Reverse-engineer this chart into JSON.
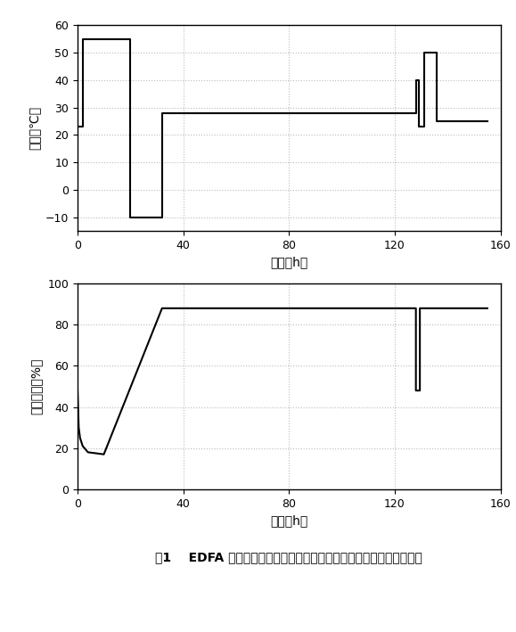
{
  "temp_x": [
    0,
    2,
    2,
    20,
    20,
    32,
    32,
    128,
    128,
    129,
    129,
    131,
    131,
    136,
    136,
    155
  ],
  "temp_y": [
    23,
    23,
    55,
    55,
    -10,
    -10,
    28,
    28,
    40,
    40,
    23,
    23,
    50,
    50,
    25,
    25
  ],
  "humid_x": [
    0,
    0.5,
    1,
    2,
    4,
    10,
    32,
    128,
    128,
    129.5,
    129.5,
    155
  ],
  "humid_y": [
    50,
    30,
    25,
    21,
    18,
    17,
    88,
    88,
    48,
    48,
    88,
    88
  ],
  "temp_xlim": [
    0,
    160
  ],
  "temp_ylim": [
    -15,
    60
  ],
  "humid_xlim": [
    0,
    160
  ],
  "humid_ylim": [
    0,
    100
  ],
  "temp_yticks": [
    -10,
    0,
    10,
    20,
    30,
    40,
    50,
    60
  ],
  "humid_yticks": [
    0,
    20,
    40,
    60,
    80,
    100
  ],
  "xticks": [
    0,
    40,
    80,
    120,
    160
  ],
  "temp_ylabel": "温度（℃）",
  "humid_ylabel": "相对湿度（%）",
  "xlabel": "时间（h）",
  "caption": "图1    EDFA 单元在工作温度和湿度试验中温度和相对湿度随时间的变化",
  "line_color": "#000000",
  "line_width": 1.5,
  "grid_color": "#bbbbbb",
  "bg_color": "#ffffff"
}
